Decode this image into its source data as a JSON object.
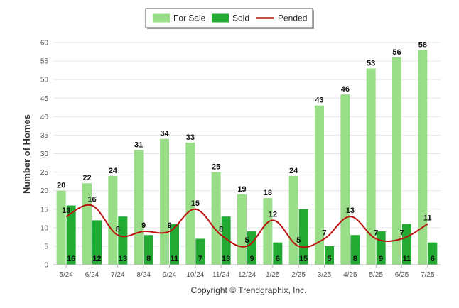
{
  "chart_data": {
    "type": "bar",
    "categories": [
      "5/24",
      "6/24",
      "7/24",
      "8/24",
      "9/24",
      "10/24",
      "11/24",
      "12/24",
      "1/25",
      "2/25",
      "3/25",
      "4/25",
      "5/25",
      "6/25",
      "7/25"
    ],
    "series": [
      {
        "name": "For Sale",
        "type": "bar",
        "color": "#99dd88",
        "values": [
          20,
          22,
          24,
          31,
          34,
          33,
          25,
          19,
          18,
          24,
          43,
          46,
          53,
          56,
          58
        ]
      },
      {
        "name": "Sold",
        "type": "bar",
        "color": "#22aa33",
        "values": [
          16,
          12,
          13,
          8,
          11,
          7,
          13,
          9,
          6,
          15,
          5,
          8,
          9,
          11,
          6
        ]
      },
      {
        "name": "Pended",
        "type": "line",
        "color": "#bb1111",
        "values": [
          13,
          16,
          8,
          9,
          9,
          15,
          8,
          5,
          12,
          5,
          7,
          13,
          7,
          7,
          11
        ]
      }
    ],
    "title": "",
    "xlabel": "",
    "ylabel": "Number of Homes",
    "ylim": [
      0,
      60
    ],
    "yticks": [
      0,
      5,
      10,
      15,
      20,
      25,
      30,
      35,
      40,
      45,
      50,
      55,
      60
    ],
    "grid": true,
    "legend": "top-center"
  },
  "footer": {
    "credit": "Copyright © Trendgraphix, Inc."
  }
}
